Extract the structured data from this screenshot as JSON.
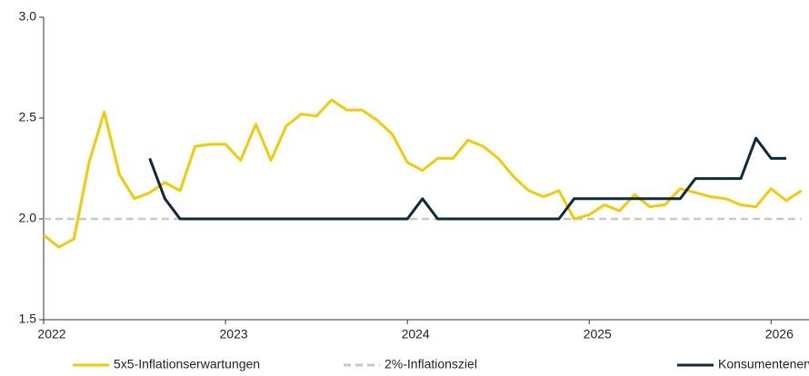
{
  "chart_data": {
    "type": "line",
    "categories": [
      "2022",
      null,
      null,
      null,
      null,
      null,
      null,
      null,
      null,
      null,
      null,
      null,
      "2023",
      null,
      null,
      null,
      null,
      null,
      null,
      null,
      null,
      null,
      null,
      null,
      "2024",
      null,
      null,
      null,
      null,
      null,
      null,
      null,
      null,
      null,
      null,
      null,
      "2025",
      null,
      null,
      null,
      null,
      null,
      null,
      null,
      null,
      null,
      null,
      null,
      "2026",
      null,
      null
    ],
    "series": [
      {
        "name": "5x5-Inflationserwartungen",
        "color": "#f2cb05",
        "values": [
          1.92,
          1.86,
          1.9,
          2.28,
          2.53,
          2.22,
          2.1,
          2.13,
          2.18,
          2.14,
          2.36,
          2.37,
          2.37,
          2.29,
          2.47,
          2.29,
          2.46,
          2.52,
          2.51,
          2.59,
          2.54,
          2.54,
          2.49,
          2.42,
          2.28,
          2.24,
          2.3,
          2.3,
          2.39,
          2.36,
          2.3,
          2.21,
          2.14,
          2.11,
          2.14,
          2.0,
          2.02,
          2.07,
          2.04,
          2.12,
          2.06,
          2.07,
          2.15,
          2.13,
          2.11,
          2.1,
          2.07,
          2.06,
          2.15,
          2.09,
          2.14
        ]
      },
      {
        "name": "2%-Inflationsziel",
        "color": "#c8c8c8",
        "dashed": true,
        "values": [
          2.0,
          2.0,
          2.0,
          2.0,
          2.0,
          2.0,
          2.0,
          2.0,
          2.0,
          2.0,
          2.0,
          2.0,
          2.0,
          2.0,
          2.0,
          2.0,
          2.0,
          2.0,
          2.0,
          2.0,
          2.0,
          2.0,
          2.0,
          2.0,
          2.0,
          2.0,
          2.0,
          2.0,
          2.0,
          2.0,
          2.0,
          2.0,
          2.0,
          2.0,
          2.0,
          2.0,
          2.0,
          2.0,
          2.0,
          2.0,
          2.0,
          2.0,
          2.0,
          2.0,
          2.0,
          2.0,
          2.0,
          2.0,
          2.0,
          2.0,
          2.0
        ]
      },
      {
        "name": "Konsumentenerwartungen",
        "color": "#0d2b3a",
        "values": [
          null,
          null,
          null,
          null,
          null,
          null,
          null,
          2.3,
          2.1,
          2.0,
          2.0,
          2.0,
          2.0,
          2.0,
          2.0,
          2.0,
          2.0,
          2.0,
          2.0,
          2.0,
          2.0,
          2.0,
          2.0,
          2.0,
          2.0,
          2.1,
          2.0,
          2.0,
          2.0,
          2.0,
          2.0,
          2.0,
          2.0,
          2.0,
          2.0,
          2.1,
          2.1,
          2.1,
          2.1,
          2.1,
          2.1,
          2.1,
          2.1,
          2.2,
          2.2,
          2.2,
          2.2,
          2.4,
          2.3,
          2.3,
          null
        ]
      }
    ],
    "ylim": [
      1.5,
      3.0
    ],
    "yticks": [
      {
        "value": 1.5,
        "label": "1.5"
      },
      {
        "value": 2,
        "label": "2.0"
      },
      2.5,
      {
        "value": 3,
        "label": "3.0"
      }
    ],
    "grid": false,
    "legend": "bottom"
  }
}
